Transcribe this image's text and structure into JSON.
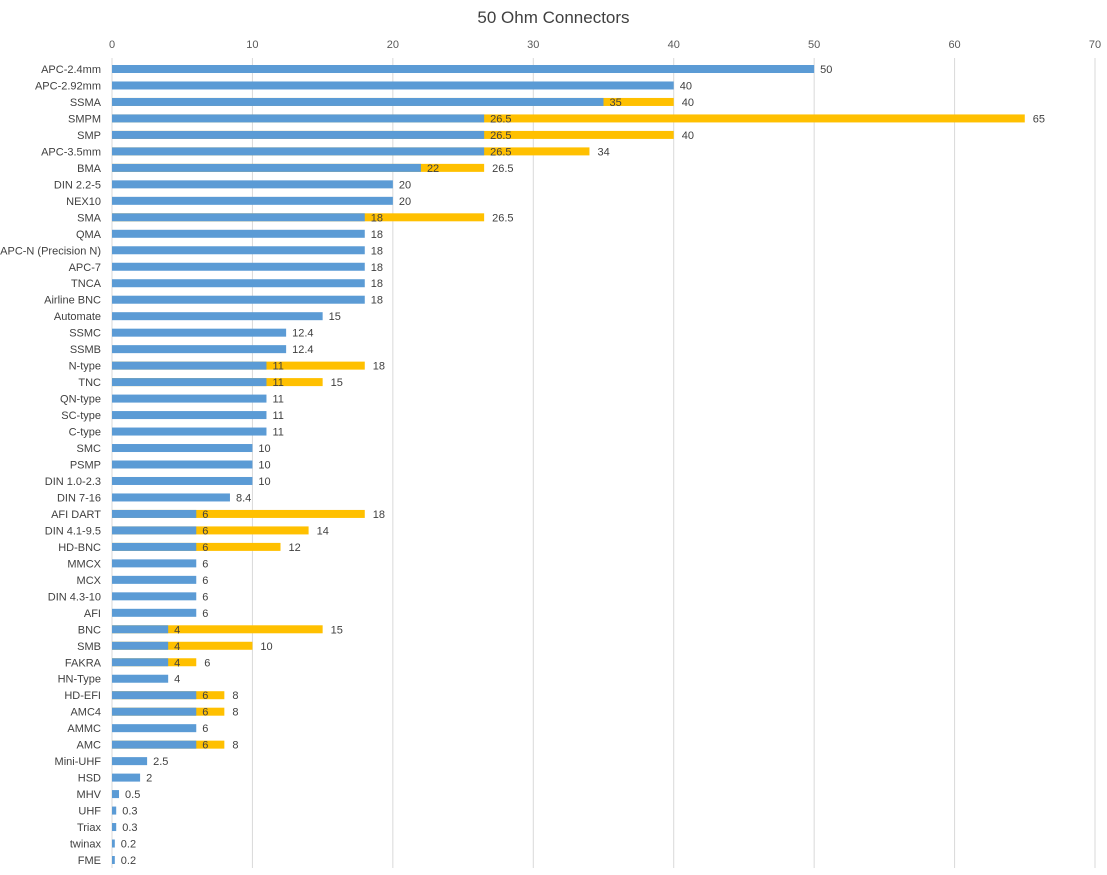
{
  "chart_data": {
    "type": "bar",
    "orientation": "horizontal",
    "stacked_overlay": true,
    "title": "50 Ohm Connectors",
    "xlabel": "",
    "ylabel": "",
    "xlim": [
      0,
      70
    ],
    "xticks": [
      0,
      10,
      20,
      30,
      40,
      50,
      60,
      70
    ],
    "x_axis_position": "top",
    "grid": true,
    "colors": {
      "min": "#5b9bd5",
      "max": "#ffc000",
      "grid": "#d9d9d9"
    },
    "categories": [
      "APC-2.4mm",
      "APC-2.92mm",
      "SSMA",
      "SMPM",
      "SMP",
      "APC-3.5mm",
      "BMA",
      "DIN 2.2-5",
      "NEX10",
      "SMA",
      "QMA",
      "APC-N (Precision N)",
      "APC-7",
      "TNCA",
      "Airline BNC",
      "Automate",
      "SSMC",
      "SSMB",
      "N-type",
      "TNC",
      "QN-type",
      "SC-type",
      "C-type",
      "SMC",
      "PSMP",
      "DIN 1.0-2.3",
      "DIN 7-16",
      "AFI DART",
      "DIN 4.1-9.5",
      "HD-BNC",
      "MMCX",
      "MCX",
      "DIN 4.3-10",
      "AFI",
      "BNC",
      "SMB",
      "FAKRA",
      "HN-Type",
      "HD-EFI",
      "AMC4",
      "AMMC",
      "AMC",
      "Mini-UHF",
      "HSD",
      "MHV",
      "UHF",
      "Triax",
      "twinax",
      "FME"
    ],
    "series": [
      {
        "values": [
          50,
          40,
          35,
          26.5,
          26.5,
          26.5,
          22,
          20,
          20,
          18,
          18,
          18,
          18,
          18,
          18,
          15,
          12.4,
          12.4,
          11,
          11,
          11,
          11,
          11,
          10,
          10,
          10,
          8.4,
          6,
          6,
          6,
          6,
          6,
          6,
          6,
          4,
          4,
          4,
          4,
          6,
          6,
          6,
          6,
          2.5,
          2,
          0.5,
          0.3,
          0.3,
          0.2,
          0.2
        ]
      },
      {
        "values": [
          null,
          null,
          40,
          65,
          40,
          34,
          26.5,
          null,
          null,
          26.5,
          null,
          null,
          null,
          null,
          null,
          null,
          null,
          null,
          18,
          15,
          null,
          null,
          null,
          null,
          null,
          null,
          null,
          18,
          14,
          12,
          null,
          null,
          null,
          null,
          15,
          10,
          6,
          null,
          8,
          8,
          null,
          8,
          null,
          null,
          null,
          null,
          null,
          null,
          null
        ]
      }
    ]
  }
}
